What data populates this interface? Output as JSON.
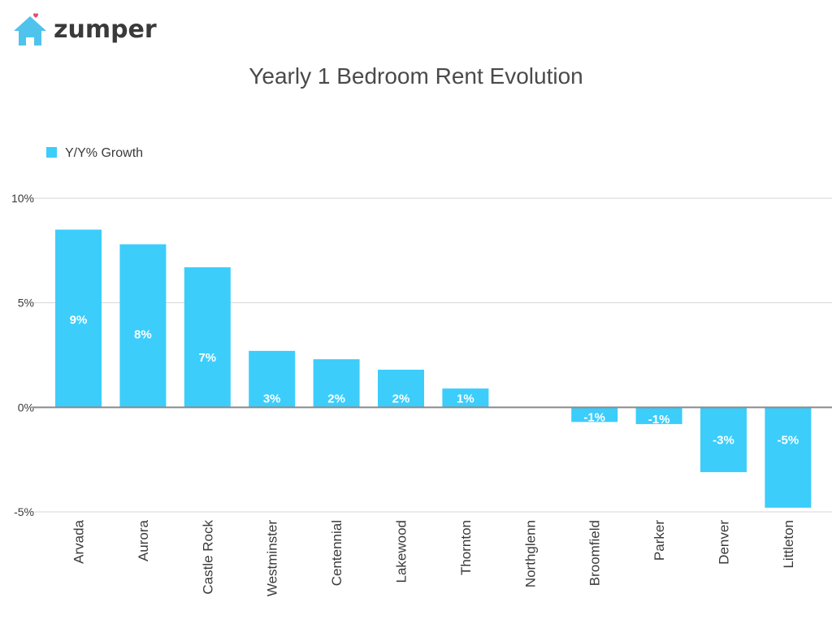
{
  "brand": {
    "name": "zumper",
    "icon": "house-with-heart-icon",
    "icon_color": "#4fc3ec",
    "heart_color": "#e74c6f"
  },
  "chart_data": {
    "type": "bar",
    "title": "Yearly 1 Bedroom Rent Evolution",
    "xlabel": "",
    "ylabel": "",
    "categories": [
      "Arvada",
      "Aurora",
      "Castle Rock",
      "Westminster",
      "Centennial",
      "Lakewood",
      "Thornton",
      "Northglenn",
      "Broomfield",
      "Parker",
      "Denver",
      "Littleton"
    ],
    "series": [
      {
        "name": "Y/Y% Growth",
        "values": [
          8.5,
          7.8,
          6.7,
          2.7,
          2.3,
          1.8,
          0.9,
          0,
          -0.7,
          -0.8,
          -3.1,
          -4.8
        ],
        "labels": [
          "9%",
          "8%",
          "7%",
          "3%",
          "2%",
          "2%",
          "1%",
          "",
          "-1%",
          "-1%",
          "-3%",
          "-5%"
        ]
      }
    ],
    "ylim": [
      -5,
      10
    ],
    "yticks": [
      10,
      5,
      0,
      -5
    ],
    "ytick_labels": [
      "10%",
      "5%",
      "0%",
      "-5%"
    ],
    "grid": true,
    "legend_position": "top-left",
    "colors": {
      "bar": "#3ccdfb",
      "grid": "#d6d6d6",
      "zero_line": "#8a8a8a",
      "text": "#3a3a3a",
      "bar_label": "#ffffff"
    }
  }
}
